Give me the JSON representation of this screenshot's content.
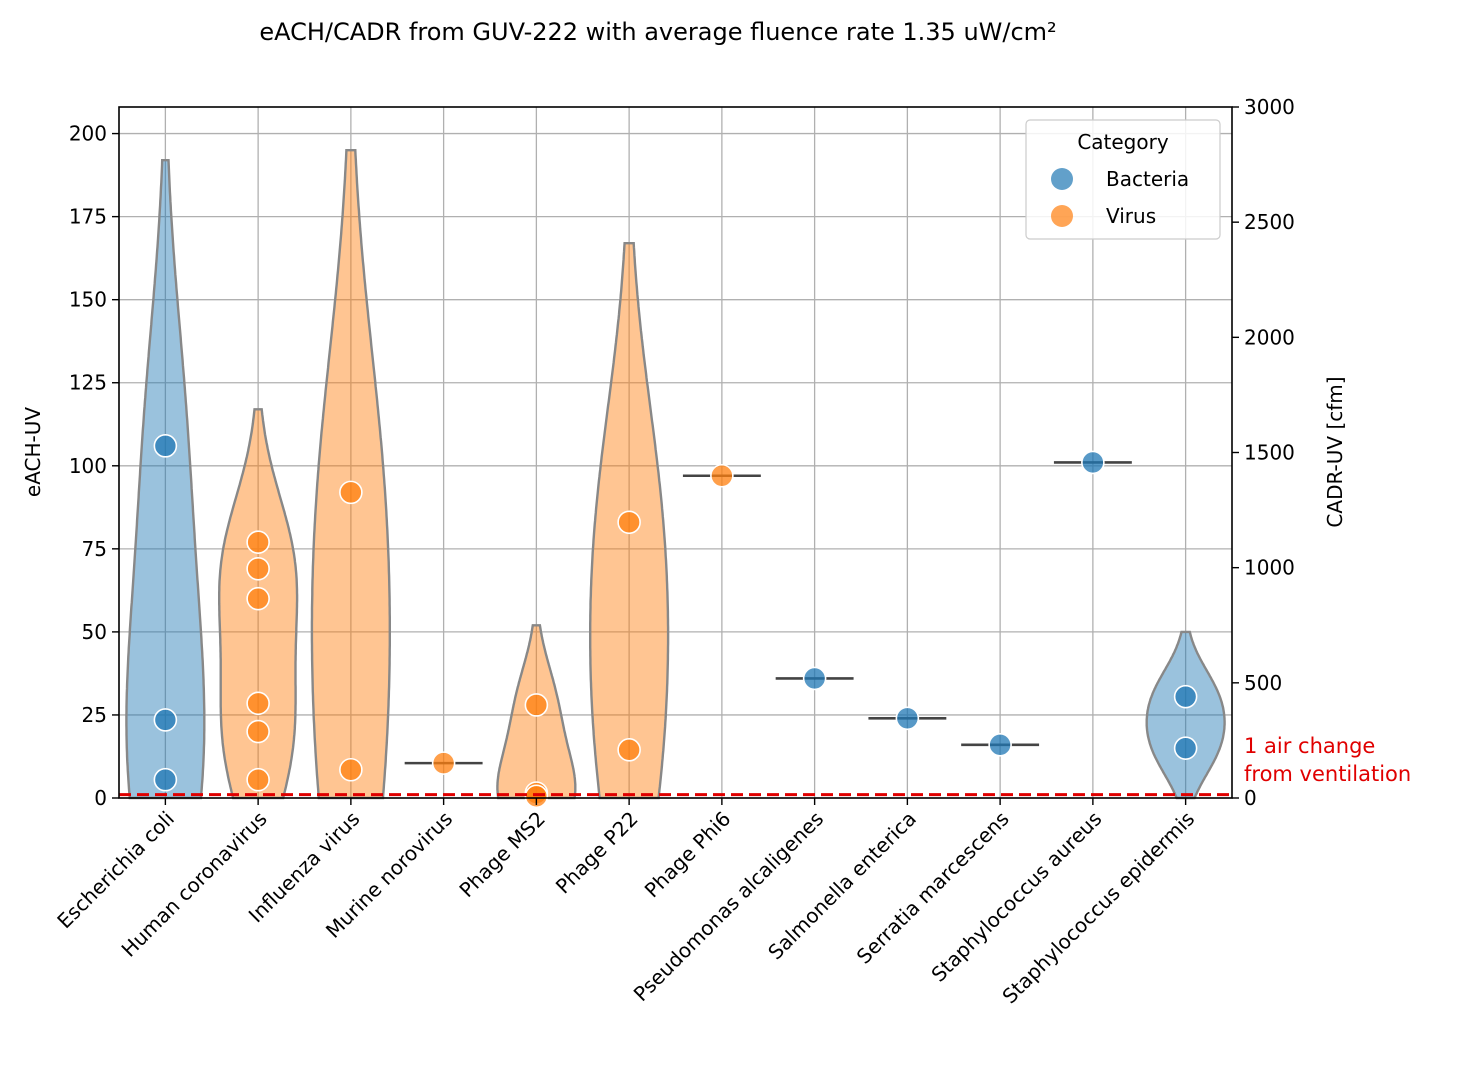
{
  "chart_data": {
    "type": "violin",
    "title": "eACH/CADR from GUV-222 with average fluence rate 1.35 uW/cm²",
    "ylabel": "eACH-UV",
    "y2label": "CADR-UV [cfm]",
    "ylim": [
      0,
      208
    ],
    "y2lim": [
      0,
      3000
    ],
    "yticks": [
      0,
      25,
      50,
      75,
      100,
      125,
      150,
      175,
      200
    ],
    "y2ticks": [
      0,
      500,
      1000,
      1500,
      2000,
      2500,
      3000
    ],
    "grid": true,
    "legend_placement": "top-right",
    "legend": {
      "title": "Category",
      "entries": [
        {
          "name": "Bacteria",
          "color": "#1f77b4"
        },
        {
          "name": "Virus",
          "color": "#ff7f0e"
        }
      ]
    },
    "colors": {
      "Bacteria": "#1f77b4",
      "Virus": "#ff7f0e",
      "reference_line": "#e00000"
    },
    "reference_line": {
      "y": 1,
      "label_line1": "1 air change",
      "label_line2": "from ventilation"
    },
    "categories": [
      "Escherichia coli",
      "Human coronavirus",
      "Influenza virus",
      "Murine norovirus",
      "Phage MS2",
      "Phage P22",
      "Phage Phi6",
      "Pseudomonas alcaligenes",
      "Salmonella enterica",
      "Serratia marcescens",
      "Staphylococcus aureus",
      "Staphylococcus epidermis"
    ],
    "groups": [
      {
        "category": "Escherichia coli",
        "class": "Bacteria",
        "points": [
          106,
          23.5,
          5.5
        ],
        "violin_max": 192
      },
      {
        "category": "Human coronavirus",
        "class": "Virus",
        "points": [
          77,
          69,
          60,
          28.5,
          20,
          5.5
        ],
        "violin_max": 117
      },
      {
        "category": "Influenza virus",
        "class": "Virus",
        "points": [
          92,
          8.5
        ],
        "violin_max": 195
      },
      {
        "category": "Murine norovirus",
        "class": "Virus",
        "points": [
          10.5
        ],
        "violin_max": null
      },
      {
        "category": "Phage MS2",
        "class": "Virus",
        "points": [
          28,
          1.5,
          0.5
        ],
        "violin_max": 52
      },
      {
        "category": "Phage P22",
        "class": "Virus",
        "points": [
          83,
          14.5
        ],
        "violin_max": 167
      },
      {
        "category": "Phage Phi6",
        "class": "Virus",
        "points": [
          97
        ],
        "violin_max": null
      },
      {
        "category": "Pseudomonas alcaligenes",
        "class": "Bacteria",
        "points": [
          36
        ],
        "violin_max": null
      },
      {
        "category": "Salmonella enterica",
        "class": "Bacteria",
        "points": [
          24
        ],
        "violin_max": null
      },
      {
        "category": "Serratia marcescens",
        "class": "Bacteria",
        "points": [
          16
        ],
        "violin_max": null
      },
      {
        "category": "Staphylococcus aureus",
        "class": "Bacteria",
        "points": [
          101
        ],
        "violin_max": null
      },
      {
        "category": "Staphylococcus epidermis",
        "class": "Bacteria",
        "points": [
          30.5,
          15
        ],
        "violin_max": 50
      }
    ]
  }
}
